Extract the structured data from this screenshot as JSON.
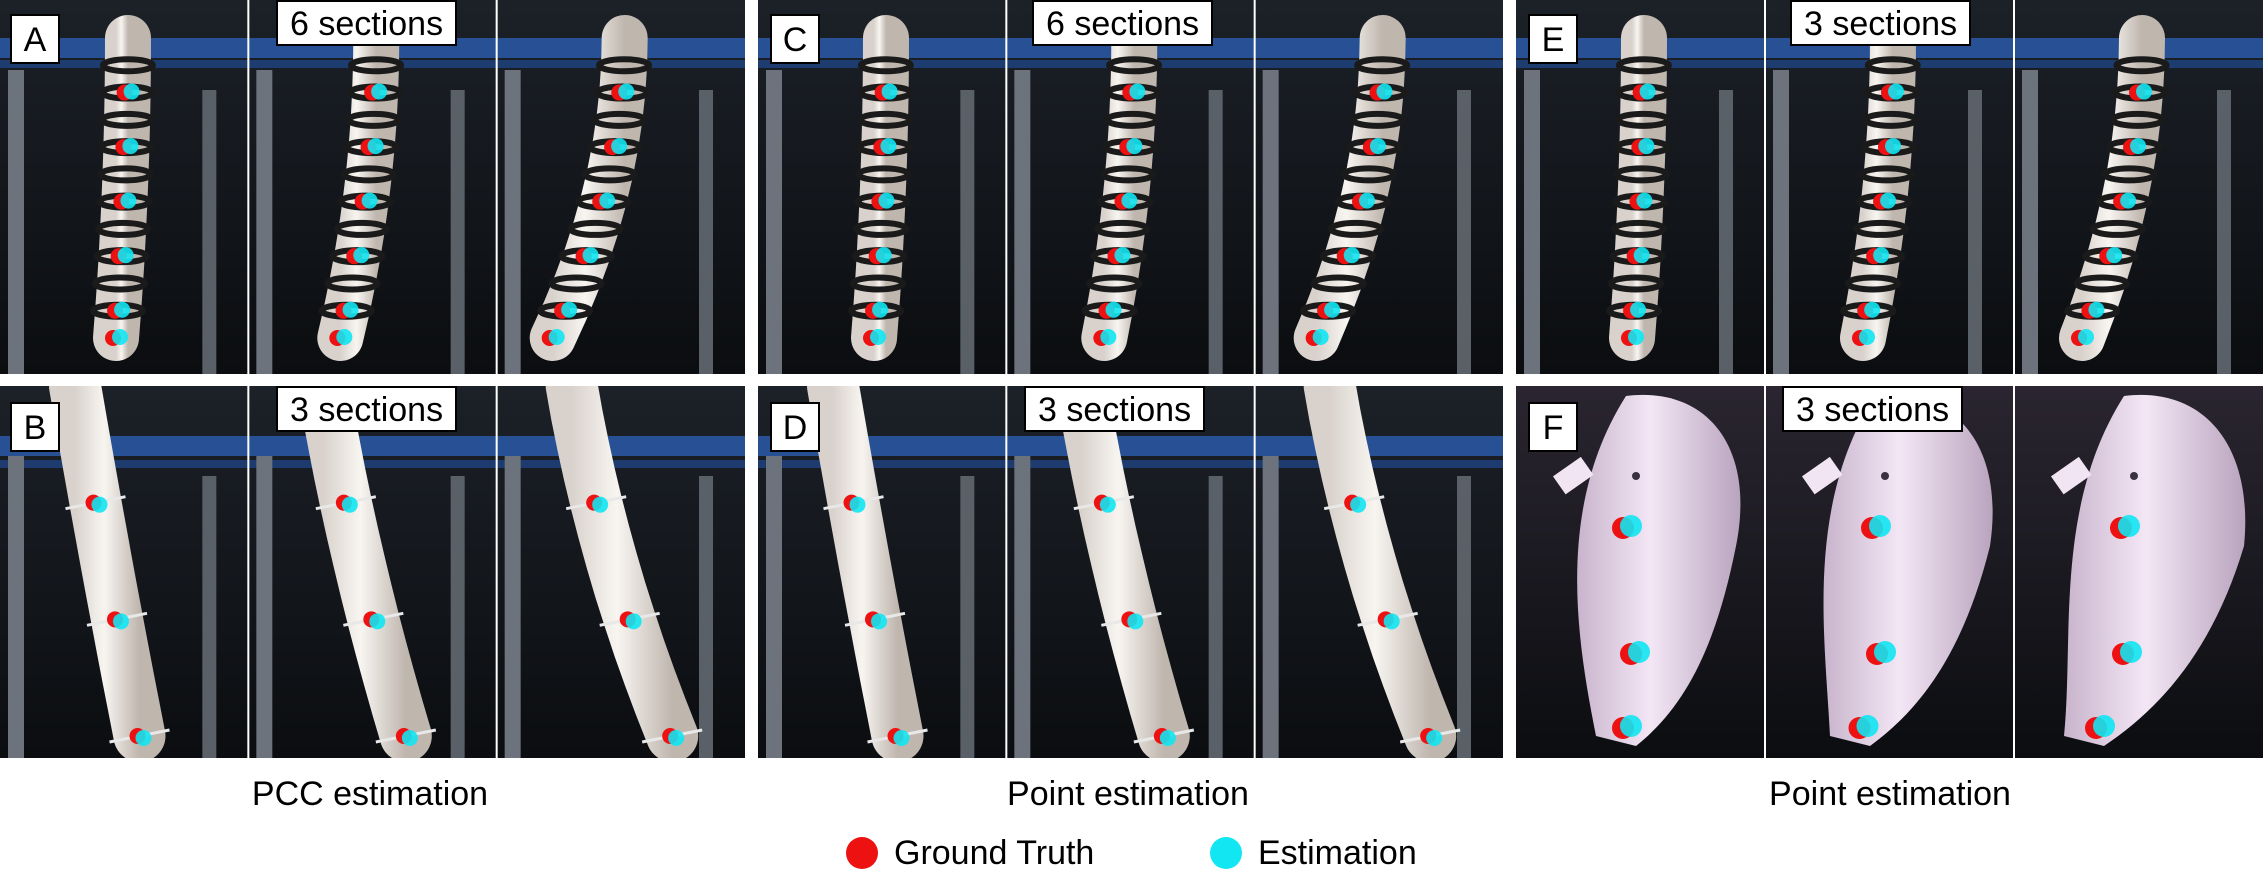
{
  "colors": {
    "ground_truth": "#ee1111",
    "estimation": "#11e6f2"
  },
  "panels": {
    "a": {
      "letter": "A",
      "sections_label": "6 sections"
    },
    "b": {
      "letter": "B",
      "sections_label": "3 sections"
    },
    "c": {
      "letter": "C",
      "sections_label": "6 sections"
    },
    "d": {
      "letter": "D",
      "sections_label": "3 sections"
    },
    "e": {
      "letter": "E",
      "sections_label": "3 sections"
    },
    "f": {
      "letter": "F",
      "sections_label": "3 sections"
    }
  },
  "captions": {
    "left": "PCC estimation",
    "middle": "Point estimation",
    "right": "Point estimation"
  },
  "legend": {
    "ground_truth_label": "Ground Truth",
    "estimation_label": "Estimation"
  }
}
